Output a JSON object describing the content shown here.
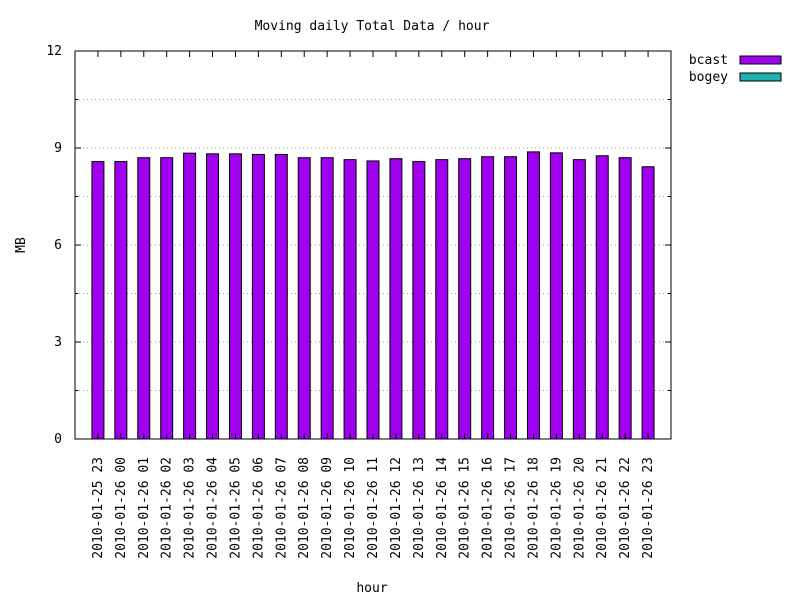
{
  "chart_data": {
    "type": "bar",
    "title": "Moving daily Total Data / hour",
    "xlabel": "hour",
    "ylabel": "MB",
    "ylim": [
      0,
      12
    ],
    "yticks": [
      0,
      3,
      6,
      9,
      12
    ],
    "grid": true,
    "legend_position": "outside-top-right",
    "categories": [
      "2010-01-25 23",
      "2010-01-26 00",
      "2010-01-26 01",
      "2010-01-26 02",
      "2010-01-26 03",
      "2010-01-26 04",
      "2010-01-26 05",
      "2010-01-26 06",
      "2010-01-26 07",
      "2010-01-26 08",
      "2010-01-26 09",
      "2010-01-26 10",
      "2010-01-26 11",
      "2010-01-26 12",
      "2010-01-26 13",
      "2010-01-26 14",
      "2010-01-26 15",
      "2010-01-26 16",
      "2010-01-26 17",
      "2010-01-26 18",
      "2010-01-26 19",
      "2010-01-26 20",
      "2010-01-26 21",
      "2010-01-26 22",
      "2010-01-26 23"
    ],
    "series": [
      {
        "name": "bcast",
        "color": "#a000f0",
        "values": [
          8.58,
          8.58,
          8.7,
          8.7,
          8.84,
          8.82,
          8.82,
          8.8,
          8.8,
          8.7,
          8.7,
          8.64,
          8.6,
          8.67,
          8.58,
          8.64,
          8.67,
          8.73,
          8.73,
          8.88,
          8.85,
          8.64,
          8.76,
          8.7,
          8.42
        ]
      },
      {
        "name": "bogey",
        "color": "#20b0b0",
        "values": [
          0,
          0,
          0,
          0,
          0,
          0,
          0,
          0,
          0,
          0,
          0,
          0,
          0,
          0,
          0,
          0,
          0,
          0,
          0,
          0,
          0,
          0,
          0,
          0,
          0
        ]
      }
    ]
  }
}
